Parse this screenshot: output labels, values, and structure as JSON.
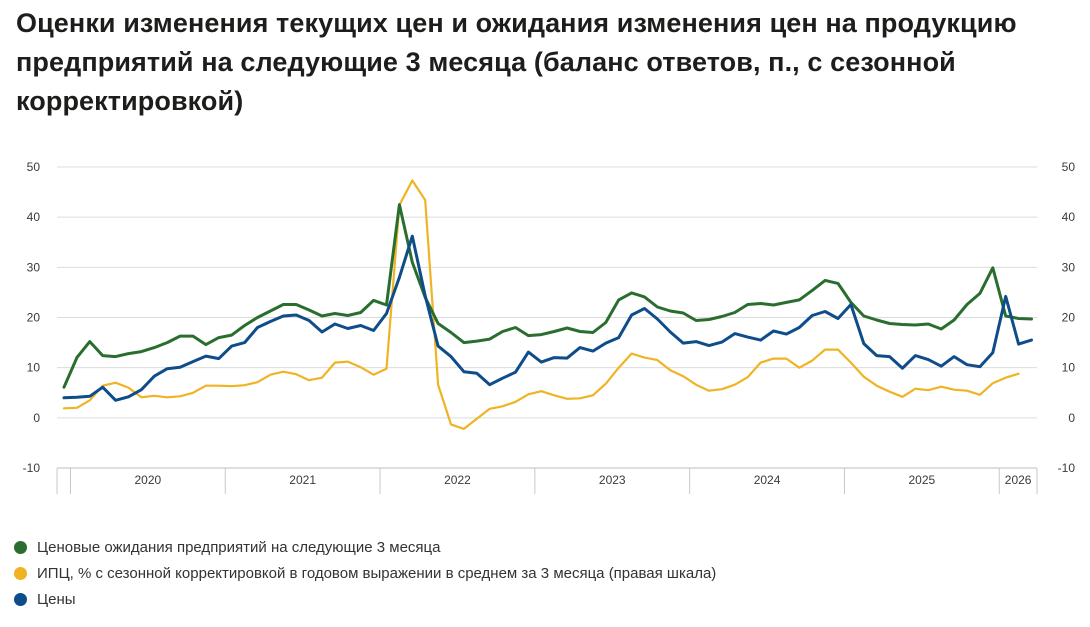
{
  "title": "Оценки изменения текущих цен и ожидания изменения цен на продукцию предприятий на следующие 3 месяца (баланс ответов, п., с сезонной корректировкой)",
  "chart_data": {
    "type": "line",
    "title": "Оценки изменения текущих цен и ожидания изменения цен на продукцию предприятий на следующие 3 месяца (баланс ответов, п., с сезонной корректировкой)",
    "x_start": "2019-12",
    "x_frequency": "monthly",
    "y_left": {
      "range": [
        -10,
        50
      ],
      "ticks": [
        -10,
        0,
        10,
        20,
        30,
        40,
        50
      ]
    },
    "y_right": {
      "range": [
        -10,
        50
      ],
      "ticks": [
        -10,
        0,
        10,
        20,
        30,
        40,
        50
      ]
    },
    "x_year_labels": [
      "2020",
      "2021",
      "2022",
      "2023",
      "2024",
      "2025",
      "2026"
    ],
    "grid": "horizontal",
    "legend_position": "bottom-left",
    "series": [
      {
        "name": "Ценовые ожидания предприятий на следующие 3 месяца",
        "color": "#2a6e2f",
        "axis": "left",
        "values": [
          6.1,
          12.0,
          15.2,
          12.4,
          12.2,
          12.8,
          13.2,
          14.0,
          15.0,
          16.3,
          16.3,
          14.6,
          16.0,
          16.5,
          18.4,
          20.0,
          21.3,
          22.6,
          22.6,
          21.5,
          20.3,
          20.8,
          20.4,
          21.0,
          23.4,
          22.5,
          42.5,
          31.0,
          24.0,
          18.8,
          17.0,
          15.0,
          15.3,
          15.7,
          17.2,
          18.0,
          16.4,
          16.6,
          17.2,
          17.9,
          17.2,
          17.0,
          19.0,
          23.5,
          24.9,
          24.1,
          22.1,
          21.3,
          20.9,
          19.4,
          19.6,
          20.2,
          21.0,
          22.6,
          22.8,
          22.5,
          23.0,
          23.5,
          25.4,
          27.4,
          26.8,
          23.0,
          20.3,
          19.5,
          18.8,
          18.6,
          18.5,
          18.7,
          17.7,
          19.5,
          22.6,
          24.8,
          29.9,
          20.3,
          19.8,
          19.7
        ]
      },
      {
        "name": "ИПЦ, % с сезонной корректировкой в годовом выражении в среднем за 3 месяца (правая шкала)",
        "color": "#f0b323",
        "axis": "right",
        "values": [
          1.9,
          2.0,
          3.5,
          6.4,
          7.0,
          6.0,
          4.1,
          4.4,
          4.1,
          4.3,
          5.0,
          6.4,
          6.4,
          6.3,
          6.5,
          7.1,
          8.6,
          9.2,
          8.7,
          7.5,
          8.0,
          11.0,
          11.2,
          10.1,
          8.6,
          9.8,
          42.4,
          47.3,
          43.4,
          6.6,
          -1.3,
          -2.2,
          -0.2,
          1.8,
          2.3,
          3.2,
          4.7,
          5.3,
          4.5,
          3.8,
          3.9,
          4.5,
          6.8,
          10.0,
          12.8,
          12.0,
          11.5,
          9.5,
          8.3,
          6.6,
          5.4,
          5.7,
          6.6,
          8.1,
          11.0,
          11.8,
          11.8,
          10.0,
          11.4,
          13.6,
          13.6,
          11.0,
          8.2,
          6.4,
          5.2,
          4.2,
          5.8,
          5.5,
          6.2,
          5.6,
          5.4,
          4.6,
          6.9,
          8.0,
          8.8
        ]
      },
      {
        "name": "Цены",
        "color": "#0e4c8a",
        "axis": "left",
        "values": [
          4.0,
          4.1,
          4.3,
          6.1,
          3.5,
          4.2,
          5.6,
          8.3,
          9.8,
          10.1,
          11.2,
          12.3,
          11.8,
          14.3,
          15.0,
          18.0,
          19.2,
          20.3,
          20.5,
          19.4,
          17.1,
          18.7,
          17.8,
          18.4,
          17.4,
          20.8,
          28.0,
          36.2,
          24.3,
          14.3,
          12.2,
          9.2,
          8.9,
          6.6,
          7.9,
          9.1,
          13.1,
          11.1,
          12.0,
          11.9,
          14.0,
          13.3,
          14.9,
          16.0,
          20.5,
          21.8,
          19.7,
          17.1,
          14.9,
          15.2,
          14.4,
          15.1,
          16.8,
          16.1,
          15.5,
          17.3,
          16.7,
          18.0,
          20.4,
          21.2,
          19.8,
          22.6,
          14.8,
          12.4,
          12.2,
          9.9,
          12.4,
          11.6,
          10.3,
          12.2,
          10.6,
          10.2,
          13.0,
          24.2,
          14.7,
          15.5
        ]
      }
    ]
  }
}
